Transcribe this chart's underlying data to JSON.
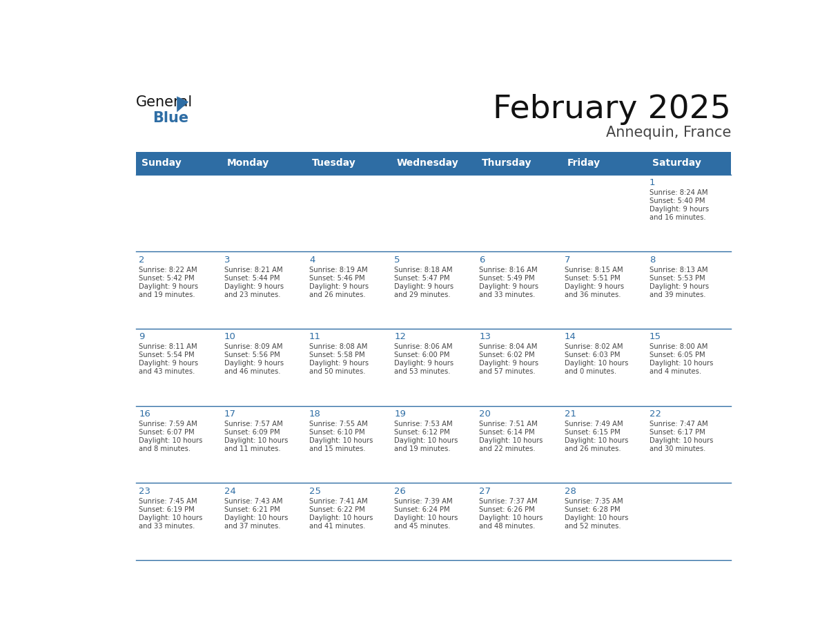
{
  "title": "February 2025",
  "subtitle": "Annequin, France",
  "header_color": "#2E6DA4",
  "header_text_color": "#FFFFFF",
  "days_of_week": [
    "Sunday",
    "Monday",
    "Tuesday",
    "Wednesday",
    "Thursday",
    "Friday",
    "Saturday"
  ],
  "bg_color": "#FFFFFF",
  "line_color": "#2E6DA4",
  "day_number_color": "#2E6DA4",
  "text_color": "#444444",
  "calendar": [
    [
      null,
      null,
      null,
      null,
      null,
      null,
      {
        "day": "1",
        "sunrise": "8:24 AM",
        "sunset": "5:40 PM",
        "daylight": "9 hours\nand 16 minutes."
      }
    ],
    [
      {
        "day": "2",
        "sunrise": "8:22 AM",
        "sunset": "5:42 PM",
        "daylight": "9 hours\nand 19 minutes."
      },
      {
        "day": "3",
        "sunrise": "8:21 AM",
        "sunset": "5:44 PM",
        "daylight": "9 hours\nand 23 minutes."
      },
      {
        "day": "4",
        "sunrise": "8:19 AM",
        "sunset": "5:46 PM",
        "daylight": "9 hours\nand 26 minutes."
      },
      {
        "day": "5",
        "sunrise": "8:18 AM",
        "sunset": "5:47 PM",
        "daylight": "9 hours\nand 29 minutes."
      },
      {
        "day": "6",
        "sunrise": "8:16 AM",
        "sunset": "5:49 PM",
        "daylight": "9 hours\nand 33 minutes."
      },
      {
        "day": "7",
        "sunrise": "8:15 AM",
        "sunset": "5:51 PM",
        "daylight": "9 hours\nand 36 minutes."
      },
      {
        "day": "8",
        "sunrise": "8:13 AM",
        "sunset": "5:53 PM",
        "daylight": "9 hours\nand 39 minutes."
      }
    ],
    [
      {
        "day": "9",
        "sunrise": "8:11 AM",
        "sunset": "5:54 PM",
        "daylight": "9 hours\nand 43 minutes."
      },
      {
        "day": "10",
        "sunrise": "8:09 AM",
        "sunset": "5:56 PM",
        "daylight": "9 hours\nand 46 minutes."
      },
      {
        "day": "11",
        "sunrise": "8:08 AM",
        "sunset": "5:58 PM",
        "daylight": "9 hours\nand 50 minutes."
      },
      {
        "day": "12",
        "sunrise": "8:06 AM",
        "sunset": "6:00 PM",
        "daylight": "9 hours\nand 53 minutes."
      },
      {
        "day": "13",
        "sunrise": "8:04 AM",
        "sunset": "6:02 PM",
        "daylight": "9 hours\nand 57 minutes."
      },
      {
        "day": "14",
        "sunrise": "8:02 AM",
        "sunset": "6:03 PM",
        "daylight": "10 hours\nand 0 minutes."
      },
      {
        "day": "15",
        "sunrise": "8:00 AM",
        "sunset": "6:05 PM",
        "daylight": "10 hours\nand 4 minutes."
      }
    ],
    [
      {
        "day": "16",
        "sunrise": "7:59 AM",
        "sunset": "6:07 PM",
        "daylight": "10 hours\nand 8 minutes."
      },
      {
        "day": "17",
        "sunrise": "7:57 AM",
        "sunset": "6:09 PM",
        "daylight": "10 hours\nand 11 minutes."
      },
      {
        "day": "18",
        "sunrise": "7:55 AM",
        "sunset": "6:10 PM",
        "daylight": "10 hours\nand 15 minutes."
      },
      {
        "day": "19",
        "sunrise": "7:53 AM",
        "sunset": "6:12 PM",
        "daylight": "10 hours\nand 19 minutes."
      },
      {
        "day": "20",
        "sunrise": "7:51 AM",
        "sunset": "6:14 PM",
        "daylight": "10 hours\nand 22 minutes."
      },
      {
        "day": "21",
        "sunrise": "7:49 AM",
        "sunset": "6:15 PM",
        "daylight": "10 hours\nand 26 minutes."
      },
      {
        "day": "22",
        "sunrise": "7:47 AM",
        "sunset": "6:17 PM",
        "daylight": "10 hours\nand 30 minutes."
      }
    ],
    [
      {
        "day": "23",
        "sunrise": "7:45 AM",
        "sunset": "6:19 PM",
        "daylight": "10 hours\nand 33 minutes."
      },
      {
        "day": "24",
        "sunrise": "7:43 AM",
        "sunset": "6:21 PM",
        "daylight": "10 hours\nand 37 minutes."
      },
      {
        "day": "25",
        "sunrise": "7:41 AM",
        "sunset": "6:22 PM",
        "daylight": "10 hours\nand 41 minutes."
      },
      {
        "day": "26",
        "sunrise": "7:39 AM",
        "sunset": "6:24 PM",
        "daylight": "10 hours\nand 45 minutes."
      },
      {
        "day": "27",
        "sunrise": "7:37 AM",
        "sunset": "6:26 PM",
        "daylight": "10 hours\nand 48 minutes."
      },
      {
        "day": "28",
        "sunrise": "7:35 AM",
        "sunset": "6:28 PM",
        "daylight": "10 hours\nand 52 minutes."
      },
      null
    ]
  ],
  "logo_general_color": "#111111",
  "logo_blue_color": "#2E6DA4"
}
